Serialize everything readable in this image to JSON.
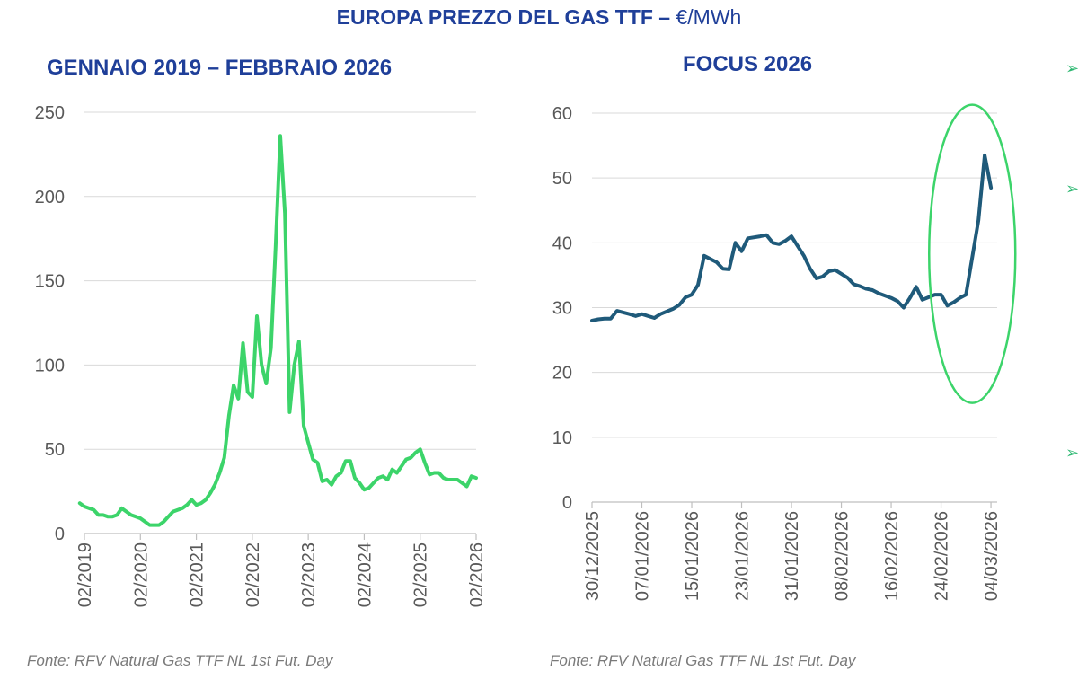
{
  "title": {
    "main": "EUROPA PREZZO DEL GAS TTF – ",
    "unit": "€/MWh"
  },
  "colors": {
    "title": "#1f3f99",
    "left_line": "#3cd46a",
    "right_line": "#1f5a7a",
    "highlight": "#3cd46a",
    "grid": "#d9d9d9"
  },
  "chart_data": [
    {
      "type": "line",
      "title": "GENNAIO 2019 – FEBBRAIO 2026",
      "x_ticks": [
        "02/2019",
        "02/2020",
        "02/2021",
        "02/2022",
        "02/2023",
        "02/2024",
        "02/2025",
        "02/2026"
      ],
      "y_ticks": [
        "0",
        "50",
        "100",
        "150",
        "200",
        "250"
      ],
      "ylim": [
        0,
        250
      ],
      "xlim": [
        "2019-02",
        "2026-02"
      ],
      "grid": true,
      "series": [
        {
          "color": "#3cd46a",
          "points": [
            [
              "2019-01",
              18
            ],
            [
              "2019-02",
              16
            ],
            [
              "2019-03",
              15
            ],
            [
              "2019-04",
              14
            ],
            [
              "2019-05",
              11
            ],
            [
              "2019-06",
              11
            ],
            [
              "2019-07",
              10
            ],
            [
              "2019-08",
              10
            ],
            [
              "2019-09",
              11
            ],
            [
              "2019-10",
              15
            ],
            [
              "2019-11",
              13
            ],
            [
              "2019-12",
              11
            ],
            [
              "2020-01",
              10
            ],
            [
              "2020-02",
              9
            ],
            [
              "2020-03",
              7
            ],
            [
              "2020-04",
              5
            ],
            [
              "2020-05",
              5
            ],
            [
              "2020-06",
              5
            ],
            [
              "2020-07",
              7
            ],
            [
              "2020-08",
              10
            ],
            [
              "2020-09",
              13
            ],
            [
              "2020-10",
              14
            ],
            [
              "2020-11",
              15
            ],
            [
              "2020-12",
              17
            ],
            [
              "2021-01",
              20
            ],
            [
              "2021-02",
              17
            ],
            [
              "2021-03",
              18
            ],
            [
              "2021-04",
              20
            ],
            [
              "2021-05",
              24
            ],
            [
              "2021-06",
              29
            ],
            [
              "2021-07",
              36
            ],
            [
              "2021-08",
              45
            ],
            [
              "2021-09",
              70
            ],
            [
              "2021-10",
              88
            ],
            [
              "2021-11",
              80
            ],
            [
              "2021-12",
              113
            ],
            [
              "2022-01",
              84
            ],
            [
              "2022-02",
              81
            ],
            [
              "2022-03",
              129
            ],
            [
              "2022-04",
              100
            ],
            [
              "2022-05",
              89
            ],
            [
              "2022-06",
              110
            ],
            [
              "2022-07",
              170
            ],
            [
              "2022-08",
              236
            ],
            [
              "2022-09",
              190
            ],
            [
              "2022-10",
              72
            ],
            [
              "2022-11",
              100
            ],
            [
              "2022-12",
              114
            ],
            [
              "2023-01",
              64
            ],
            [
              "2023-02",
              54
            ],
            [
              "2023-03",
              44
            ],
            [
              "2023-04",
              42
            ],
            [
              "2023-05",
              31
            ],
            [
              "2023-06",
              32
            ],
            [
              "2023-07",
              29
            ],
            [
              "2023-08",
              34
            ],
            [
              "2023-09",
              36
            ],
            [
              "2023-10",
              43
            ],
            [
              "2023-11",
              43
            ],
            [
              "2023-12",
              33
            ],
            [
              "2024-01",
              30
            ],
            [
              "2024-02",
              26
            ],
            [
              "2024-03",
              27
            ],
            [
              "2024-04",
              30
            ],
            [
              "2024-05",
              33
            ],
            [
              "2024-06",
              34
            ],
            [
              "2024-07",
              32
            ],
            [
              "2024-08",
              38
            ],
            [
              "2024-09",
              36
            ],
            [
              "2024-10",
              40
            ],
            [
              "2024-11",
              44
            ],
            [
              "2024-12",
              45
            ],
            [
              "2025-01",
              48
            ],
            [
              "2025-02",
              50
            ],
            [
              "2025-03",
              42
            ],
            [
              "2025-04",
              35
            ],
            [
              "2025-05",
              36
            ],
            [
              "2025-06",
              36
            ],
            [
              "2025-07",
              33
            ],
            [
              "2025-08",
              32
            ],
            [
              "2025-09",
              32
            ],
            [
              "2025-10",
              32
            ],
            [
              "2025-11",
              30
            ],
            [
              "2025-12",
              28
            ],
            [
              "2026-01",
              34
            ],
            [
              "2026-02",
              33
            ]
          ]
        }
      ]
    },
    {
      "type": "line",
      "title": "FOCUS 2026",
      "x_ticks": [
        "30/12/2025",
        "07/01/2026",
        "15/01/2026",
        "23/01/2026",
        "31/01/2026",
        "08/02/2026",
        "16/02/2026",
        "24/02/2026",
        "04/03/2026"
      ],
      "y_ticks": [
        "0",
        "10",
        "20",
        "30",
        "40",
        "50",
        "60"
      ],
      "ylim": [
        0,
        60
      ],
      "xlim": [
        "2025-12-30",
        "2026-03-05"
      ],
      "grid": true,
      "annotation": "ellipse highlighting the late-February / early-March spike",
      "series": [
        {
          "color": "#1f5a7a",
          "points": [
            [
              "2025-12-30",
              28.0
            ],
            [
              "2025-12-31",
              28.2
            ],
            [
              "2026-01-01",
              28.3
            ],
            [
              "2026-01-02",
              28.3
            ],
            [
              "2026-01-03",
              29.5
            ],
            [
              "2026-01-05",
              29.0
            ],
            [
              "2026-01-06",
              28.7
            ],
            [
              "2026-01-07",
              29.0
            ],
            [
              "2026-01-08",
              28.7
            ],
            [
              "2026-01-09",
              28.4
            ],
            [
              "2026-01-10",
              29.0
            ],
            [
              "2026-01-12",
              29.8
            ],
            [
              "2026-01-13",
              30.4
            ],
            [
              "2026-01-14",
              31.6
            ],
            [
              "2026-01-15",
              32.0
            ],
            [
              "2026-01-16",
              33.5
            ],
            [
              "2026-01-17",
              38.0
            ],
            [
              "2026-01-19",
              37.0
            ],
            [
              "2026-01-20",
              36.0
            ],
            [
              "2026-01-21",
              35.9
            ],
            [
              "2026-01-22",
              40.0
            ],
            [
              "2026-01-23",
              38.7
            ],
            [
              "2026-01-24",
              40.7
            ],
            [
              "2026-01-26",
              41.0
            ],
            [
              "2026-01-27",
              41.2
            ],
            [
              "2026-01-28",
              40.0
            ],
            [
              "2026-01-29",
              39.8
            ],
            [
              "2026-01-30",
              40.3
            ],
            [
              "2026-01-31",
              41.0
            ],
            [
              "2026-02-02",
              38.0
            ],
            [
              "2026-02-03",
              36.0
            ],
            [
              "2026-02-04",
              34.5
            ],
            [
              "2026-02-05",
              34.8
            ],
            [
              "2026-02-06",
              35.6
            ],
            [
              "2026-02-07",
              35.8
            ],
            [
              "2026-02-09",
              34.6
            ],
            [
              "2026-02-10",
              33.6
            ],
            [
              "2026-02-11",
              33.3
            ],
            [
              "2026-02-12",
              32.9
            ],
            [
              "2026-02-13",
              32.7
            ],
            [
              "2026-02-14",
              32.2
            ],
            [
              "2026-02-16",
              31.5
            ],
            [
              "2026-02-17",
              31.0
            ],
            [
              "2026-02-18",
              30.0
            ],
            [
              "2026-02-19",
              31.5
            ],
            [
              "2026-02-20",
              33.2
            ],
            [
              "2026-02-21",
              31.2
            ],
            [
              "2026-02-23",
              32.0
            ],
            [
              "2026-02-24",
              32.0
            ],
            [
              "2026-02-25",
              30.3
            ],
            [
              "2026-02-26",
              30.8
            ],
            [
              "2026-02-27",
              31.5
            ],
            [
              "2026-02-28",
              32.0
            ],
            [
              "2026-03-02",
              43.5
            ],
            [
              "2026-03-03",
              53.5
            ],
            [
              "2026-03-04",
              48.5
            ]
          ]
        }
      ]
    }
  ],
  "sources": {
    "left": "Fonte: RFV Natural Gas TTF NL 1st Fut. Day",
    "right": "Fonte: RFV Natural Gas TTF NL 1st Fut. Day"
  }
}
